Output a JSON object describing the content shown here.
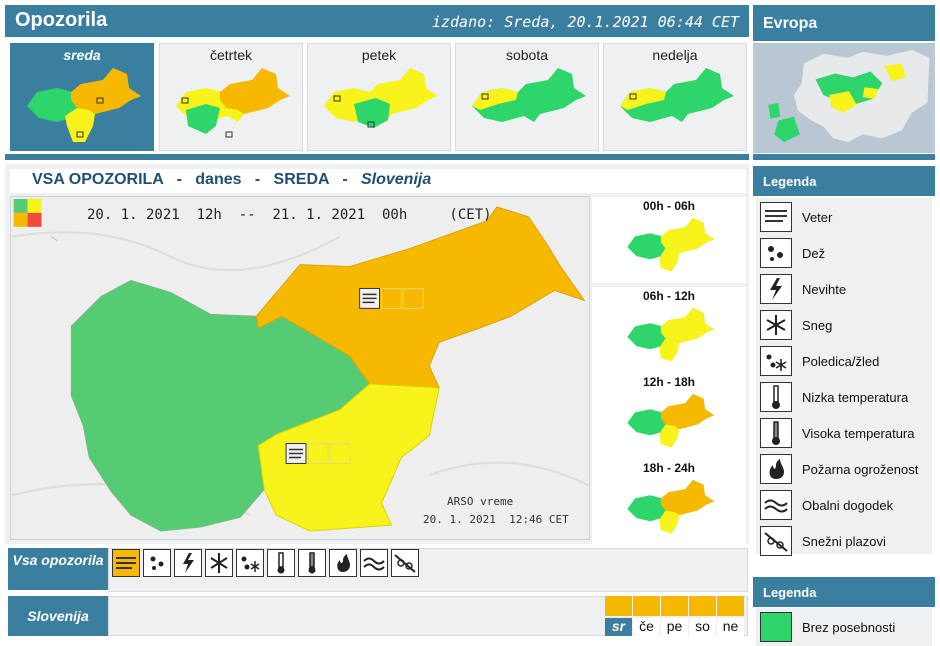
{
  "header": {
    "title": "Opozorila",
    "issued": "izdano: Sreda, 20.1.2021 06:44 CET"
  },
  "europe": {
    "title": "Evropa"
  },
  "days": [
    {
      "label": "sreda",
      "active": true
    },
    {
      "label": "četrtek"
    },
    {
      "label": "petek"
    },
    {
      "label": "sobota"
    },
    {
      "label": "nedelja"
    }
  ],
  "main": {
    "t1": "VSA OPOZORILA",
    "t2": "danes",
    "t3": "SREDA",
    "t4": "Slovenija",
    "sep": "-",
    "period": "20. 1. 2021  12h  --  21. 1. 2021  00h     (CET)",
    "credit_line1": "ARSO vreme",
    "credit_line2": "20. 1. 2021  12:46 CET"
  },
  "subperiods": [
    "00h - 06h",
    "06h - 12h",
    "12h - 18h",
    "18h - 24h"
  ],
  "legend": {
    "title": "Legenda",
    "items": [
      "Veter",
      "Dež",
      "Nevihte",
      "Sneg",
      "Poledica/žled",
      "Nizka temperatura",
      "Visoka temperatura",
      "Požarna ogroženost",
      "Obalni dogodek",
      "Snežni plazovi"
    ],
    "icons": [
      "wind-icon",
      "rain-icon",
      "thunderstorm-icon",
      "snow-icon",
      "ice-icon",
      "low-temperature-icon",
      "high-temperature-icon",
      "fire-icon",
      "coastal-icon",
      "avalanche-icon"
    ]
  },
  "legend2": {
    "title": "Legenda",
    "item": "Brez posebnosti"
  },
  "bottom": {
    "all_label": "Vsa opozorila",
    "region_label": "Slovenija",
    "day_abbr": [
      "sr",
      "če",
      "pe",
      "so",
      "ne"
    ]
  },
  "colors": {
    "green": "#2ed56a",
    "yellow": "#f8f41b",
    "orange": "#f7b900",
    "red": "#f04a3c",
    "header": "#3a7ea0"
  }
}
